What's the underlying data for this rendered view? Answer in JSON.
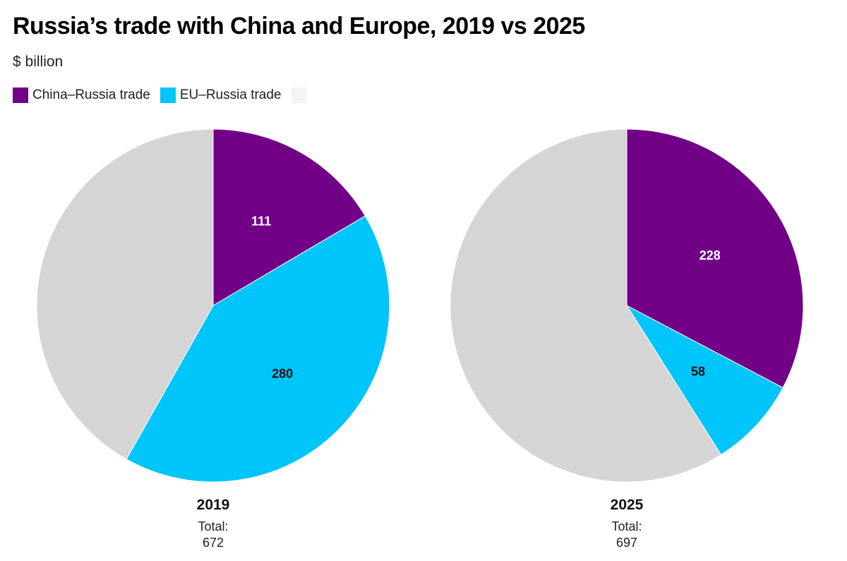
{
  "title": "Russia’s trade with China and Europe, 2019 vs 2025",
  "subtitle": "$ billion",
  "legend": [
    {
      "label": "China–Russia trade",
      "color": "#720087"
    },
    {
      "label": "EU–Russia trade",
      "color": "#00c5fb"
    },
    {
      "label": "",
      "color": "#d5d5d5"
    }
  ],
  "chart_data": [
    {
      "type": "pie",
      "year": "2019",
      "total_label": "Total:",
      "total_value": "672",
      "slices": [
        {
          "name": "China–Russia trade",
          "value": 111,
          "label": "111",
          "color": "#720087",
          "label_color": "#ffffff"
        },
        {
          "name": "EU–Russia trade",
          "value": 280,
          "label": "280",
          "color": "#00c5fb",
          "label_color": "#111111"
        },
        {
          "name": "",
          "value": 281,
          "label": "",
          "color": "#d5d5d5",
          "label_color": "#555555"
        }
      ]
    },
    {
      "type": "pie",
      "year": "2025",
      "total_label": "Total:",
      "total_value": "697",
      "slices": [
        {
          "name": "China–Russia trade",
          "value": 228,
          "label": "228",
          "color": "#720087",
          "label_color": "#ffffff"
        },
        {
          "name": "EU–Russia trade",
          "value": 58,
          "label": "58",
          "color": "#00c5fb",
          "label_color": "#111111"
        },
        {
          "name": "",
          "value": 411,
          "label": "",
          "color": "#d5d5d5",
          "label_color": "#555555"
        }
      ]
    }
  ]
}
